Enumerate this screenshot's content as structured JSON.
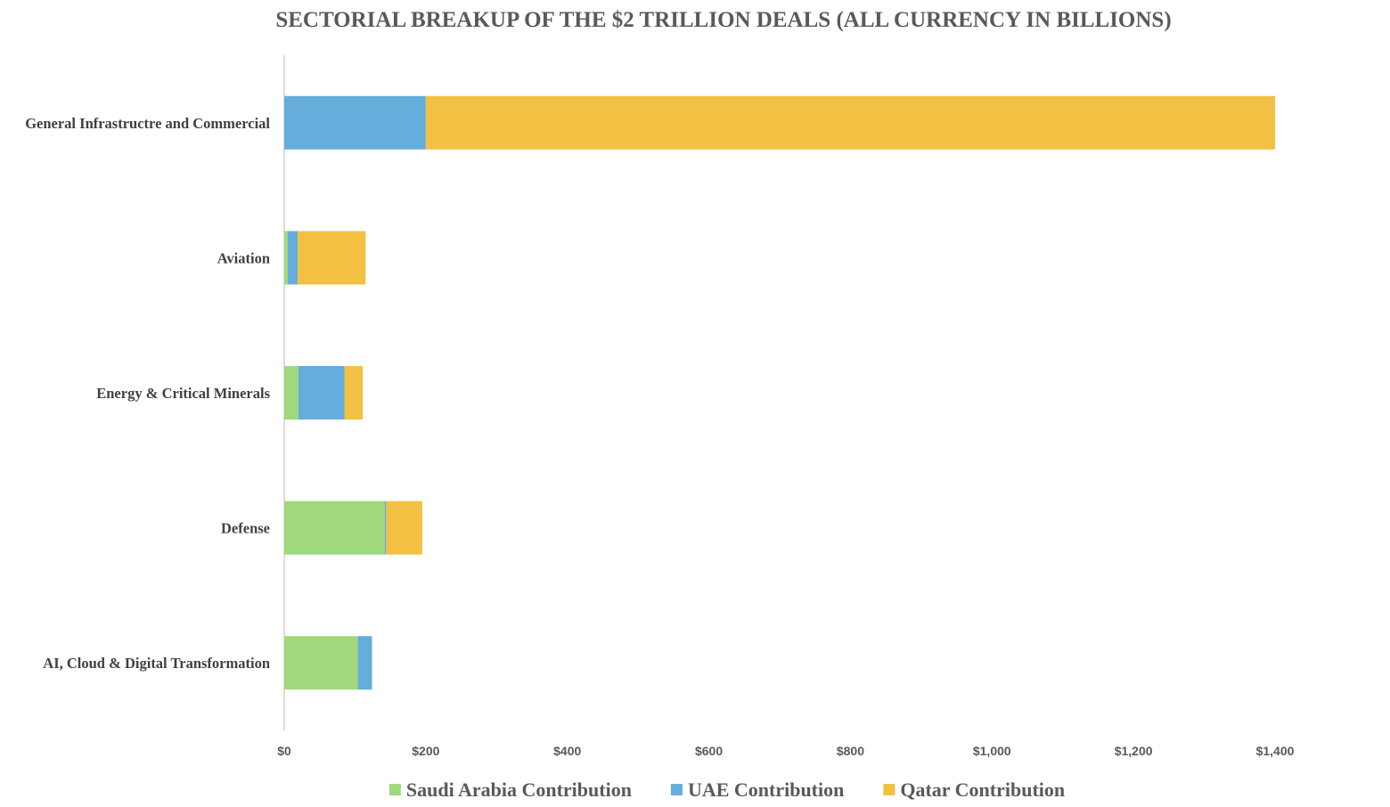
{
  "chart_data": {
    "type": "bar",
    "orientation": "horizontal",
    "stacked": true,
    "title": "SECTORIAL BREAKUP OF THE $2 TRILLION DEALS (ALL CURRENCY IN BILLIONS)",
    "xlabel": "",
    "ylabel": "",
    "categories": [
      "General Infrastructre and Commercial",
      "Aviation",
      "Energy & Critical Minerals",
      "Defense",
      "AI, Cloud & Digital Transformation"
    ],
    "series": [
      {
        "name": "Saudi Arabia Contribution",
        "color": "#a0d87c",
        "values": [
          0,
          5,
          20,
          142,
          104
        ]
      },
      {
        "name": "UAE Contribution",
        "color": "#65addb",
        "values": [
          200,
          14,
          65,
          2,
          20
        ]
      },
      {
        "name": "Qatar Contribution",
        "color": "#f2c143",
        "values": [
          1200,
          96,
          26,
          51,
          0
        ]
      }
    ],
    "xlim": [
      0,
      1400
    ],
    "x_ticks": [
      0,
      200,
      400,
      600,
      800,
      1000,
      1200,
      1400
    ],
    "x_tick_labels": [
      "$0",
      "$200",
      "$400",
      "$600",
      "$800",
      "$1,000",
      "$1,200",
      "$1,400"
    ],
    "grid": false,
    "legend_position": "bottom"
  }
}
